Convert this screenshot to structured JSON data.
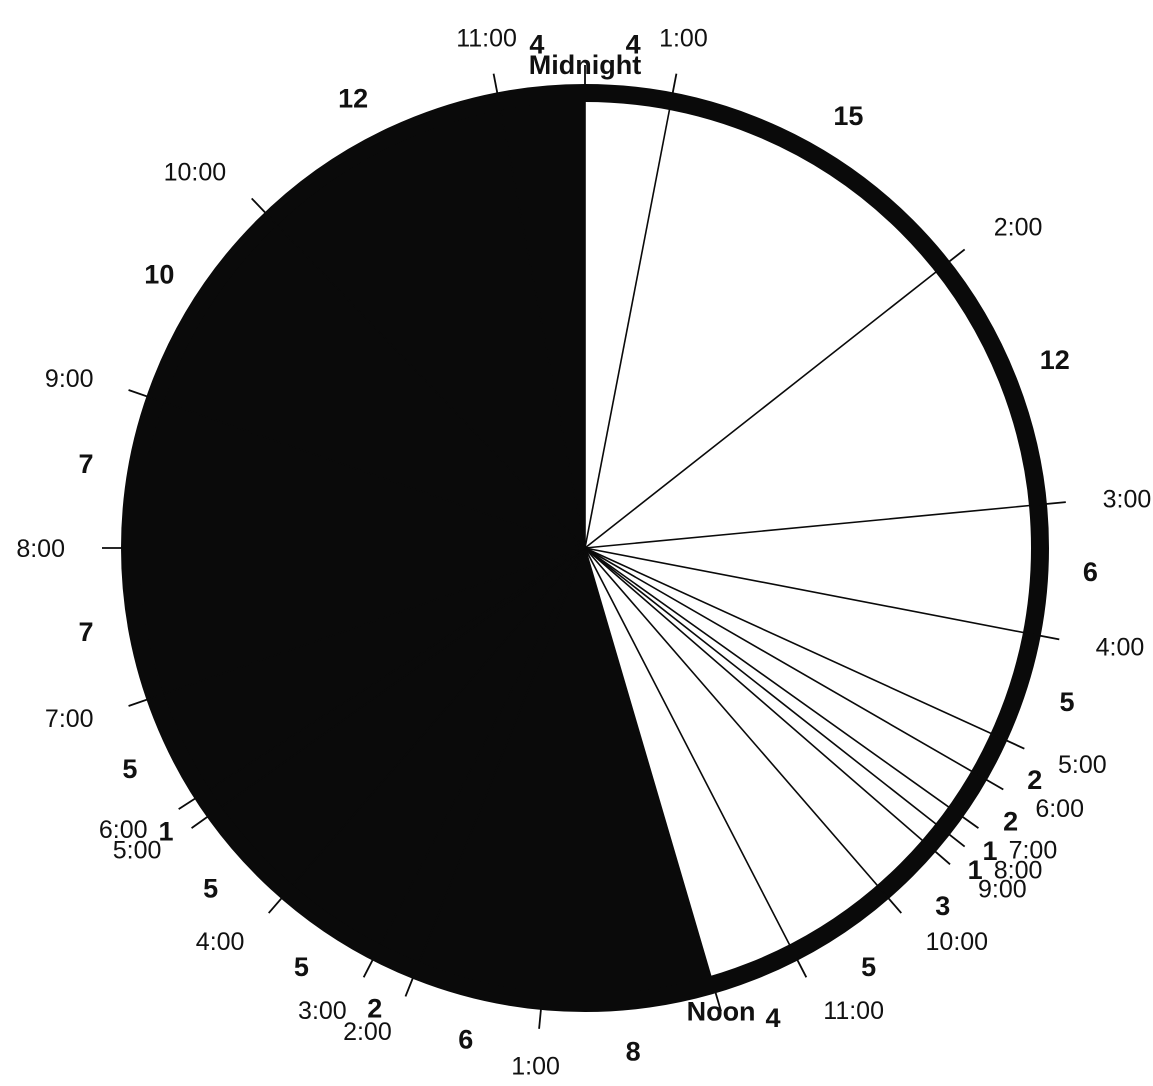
{
  "chart_data": {
    "type": "pie",
    "title": "",
    "colors": {
      "night_fill": "#0a0a0a",
      "day_fill": "#ffffff",
      "ring": "#0a0a0a",
      "text": "#111111"
    },
    "slices": [
      {
        "start_label": "Midnight",
        "end_label": "1:00",
        "value": 4,
        "fill": "day"
      },
      {
        "start_label": "1:00",
        "end_label": "2:00",
        "value": 15,
        "fill": "day"
      },
      {
        "start_label": "2:00",
        "end_label": "3:00",
        "value": 12,
        "fill": "day"
      },
      {
        "start_label": "3:00",
        "end_label": "4:00",
        "value": 6,
        "fill": "day"
      },
      {
        "start_label": "4:00",
        "end_label": "5:00",
        "value": 5,
        "fill": "day"
      },
      {
        "start_label": "5:00",
        "end_label": "6:00",
        "value": 2,
        "fill": "day"
      },
      {
        "start_label": "6:00",
        "end_label": "7:00",
        "value": 2,
        "fill": "day"
      },
      {
        "start_label": "7:00",
        "end_label": "8:00",
        "value": 1,
        "fill": "day"
      },
      {
        "start_label": "8:00",
        "end_label": "9:00",
        "value": 1,
        "fill": "day"
      },
      {
        "start_label": "9:00",
        "end_label": "10:00",
        "value": 3,
        "fill": "day"
      },
      {
        "start_label": "10:00",
        "end_label": "11:00",
        "value": 5,
        "fill": "day"
      },
      {
        "start_label": "11:00",
        "end_label": "Noon",
        "value": 4,
        "fill": "day"
      },
      {
        "start_label": "Noon",
        "end_label": "1:00",
        "value": 8,
        "fill": "night"
      },
      {
        "start_label": "1:00",
        "end_label": "2:00",
        "value": 6,
        "fill": "night"
      },
      {
        "start_label": "2:00",
        "end_label": "3:00",
        "value": 2,
        "fill": "night"
      },
      {
        "start_label": "3:00",
        "end_label": "4:00",
        "value": 5,
        "fill": "night"
      },
      {
        "start_label": "4:00",
        "end_label": "5:00",
        "value": 5,
        "fill": "night"
      },
      {
        "start_label": "5:00",
        "end_label": "6:00",
        "value": 1,
        "fill": "night"
      },
      {
        "start_label": "6:00",
        "end_label": "7:00",
        "value": 5,
        "fill": "night"
      },
      {
        "start_label": "7:00",
        "end_label": "8:00",
        "value": 7,
        "fill": "night"
      },
      {
        "start_label": "8:00",
        "end_label": "9:00",
        "value": 7,
        "fill": "night"
      },
      {
        "start_label": "9:00",
        "end_label": "10:00",
        "value": 10,
        "fill": "night"
      },
      {
        "start_label": "10:00",
        "end_label": "11:00",
        "value": 12,
        "fill": "night"
      },
      {
        "start_label": "11:00",
        "end_label": "Midnight",
        "value": 4,
        "fill": "night"
      }
    ],
    "boundary_labels": [
      "Midnight",
      "1:00",
      "2:00",
      "3:00",
      "4:00",
      "5:00",
      "6:00",
      "7:00",
      "8:00",
      "9:00",
      "10:00",
      "11:00",
      "Noon",
      "1:00",
      "2:00",
      "3:00",
      "4:00",
      "5:00",
      "6:00",
      "7:00",
      "8:00",
      "9:00",
      "10:00",
      "11:00"
    ]
  }
}
